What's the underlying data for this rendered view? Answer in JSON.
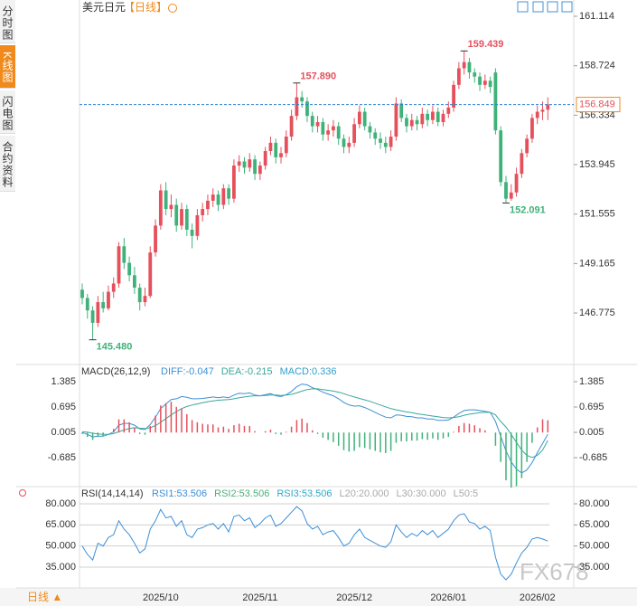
{
  "header": {
    "title": "美元日元",
    "subtitle": "【日线】",
    "sidebar_tabs": [
      "分时图",
      "K线图",
      "闪电图",
      "合约资料"
    ],
    "timeframe_button": "日线 ▲",
    "watermark": "FX678"
  },
  "chart_data": [
    {
      "type": "candlestick",
      "up_color": "#e5505c",
      "down_color": "#3fb27a",
      "ylim": [
        144.417,
        161.114
      ],
      "yticks": [
        161.114,
        158.724,
        156.334,
        153.945,
        151.555,
        149.165,
        146.775
      ],
      "last_price": {
        "value": 156.849,
        "label": "156.849",
        "color": "#2c7fd0"
      },
      "annotations": [
        {
          "value": 157.89,
          "label": "157.890",
          "color": "#e5505c"
        },
        {
          "value": 159.439,
          "label": "159.439",
          "color": "#e5505c"
        },
        {
          "value": 152.091,
          "label": "152.091",
          "color": "#3fb27a"
        },
        {
          "value": 145.48,
          "label": "145.480",
          "color": "#3fb27a"
        }
      ],
      "categories": [
        null,
        null,
        null,
        null,
        null,
        null,
        null,
        null,
        null,
        null,
        null,
        null,
        null,
        null,
        null,
        "2025/10",
        null,
        null,
        null,
        null,
        null,
        null,
        null,
        null,
        null,
        null,
        null,
        null,
        null,
        null,
        null,
        null,
        null,
        null,
        "2025/11",
        null,
        null,
        null,
        null,
        null,
        null,
        null,
        null,
        null,
        null,
        null,
        null,
        null,
        null,
        null,
        null,
        null,
        "2025/12",
        null,
        null,
        null,
        null,
        null,
        null,
        null,
        null,
        null,
        null,
        null,
        null,
        null,
        null,
        null,
        null,
        null,
        "2026/01",
        null,
        null,
        null,
        null,
        null,
        null,
        null,
        null,
        null,
        null,
        null,
        null,
        null,
        null,
        null,
        null,
        "2026/02"
      ],
      "ohlc": [
        [
          147.9,
          148.2,
          147.2,
          147.5
        ],
        [
          147.5,
          147.7,
          146.5,
          146.9
        ],
        [
          146.9,
          147.1,
          145.48,
          146.3
        ],
        [
          146.3,
          147.6,
          146.1,
          147.3
        ],
        [
          147.3,
          147.8,
          146.8,
          147.0
        ],
        [
          147.0,
          148.1,
          146.9,
          147.8
        ],
        [
          147.8,
          148.5,
          147.5,
          148.2
        ],
        [
          148.2,
          150.2,
          148.0,
          150.0
        ],
        [
          150.0,
          150.4,
          148.9,
          149.2
        ],
        [
          149.2,
          149.5,
          148.3,
          148.6
        ],
        [
          148.6,
          149.0,
          147.7,
          148.0
        ],
        [
          148.0,
          148.2,
          146.9,
          147.3
        ],
        [
          147.3,
          148.0,
          147.1,
          147.6
        ],
        [
          147.6,
          150.0,
          147.5,
          149.7
        ],
        [
          149.7,
          151.3,
          149.5,
          151.0
        ],
        [
          151.0,
          153.0,
          150.8,
          152.7
        ],
        [
          152.7,
          153.1,
          151.5,
          151.8
        ],
        [
          151.8,
          152.5,
          151.4,
          152.0
        ],
        [
          152.0,
          152.3,
          150.7,
          151.0
        ],
        [
          151.0,
          152.1,
          150.8,
          151.8
        ],
        [
          151.8,
          152.0,
          150.5,
          150.8
        ],
        [
          150.8,
          151.1,
          149.9,
          150.5
        ],
        [
          150.5,
          151.8,
          150.3,
          151.5
        ],
        [
          151.5,
          152.1,
          151.2,
          151.8
        ],
        [
          151.8,
          152.5,
          151.5,
          152.2
        ],
        [
          152.2,
          152.8,
          151.9,
          152.5
        ],
        [
          152.5,
          152.7,
          151.7,
          152.0
        ],
        [
          152.0,
          153.0,
          151.8,
          152.8
        ],
        [
          152.8,
          153.0,
          152.0,
          152.3
        ],
        [
          152.3,
          154.2,
          152.1,
          153.9
        ],
        [
          153.9,
          154.4,
          153.6,
          154.1
        ],
        [
          154.1,
          154.3,
          153.5,
          153.8
        ],
        [
          153.8,
          154.5,
          153.6,
          154.2
        ],
        [
          154.2,
          154.4,
          153.2,
          153.5
        ],
        [
          153.5,
          154.1,
          153.2,
          153.9
        ],
        [
          153.9,
          154.8,
          153.7,
          154.6
        ],
        [
          154.6,
          155.3,
          154.4,
          155.0
        ],
        [
          155.0,
          155.2,
          154.0,
          154.3
        ],
        [
          154.3,
          154.8,
          154.0,
          154.5
        ],
        [
          154.5,
          155.6,
          154.3,
          155.3
        ],
        [
          155.3,
          156.6,
          155.1,
          156.3
        ],
        [
          156.3,
          157.89,
          156.1,
          157.2
        ],
        [
          157.2,
          157.5,
          156.7,
          157.0
        ],
        [
          157.0,
          157.2,
          156.0,
          156.3
        ],
        [
          156.3,
          156.5,
          155.5,
          155.8
        ],
        [
          155.8,
          156.3,
          155.5,
          156.0
        ],
        [
          156.0,
          156.2,
          155.1,
          155.4
        ],
        [
          155.4,
          155.9,
          155.1,
          155.6
        ],
        [
          155.6,
          156.1,
          155.3,
          155.8
        ],
        [
          155.8,
          156.0,
          154.9,
          155.2
        ],
        [
          155.2,
          155.4,
          154.5,
          154.8
        ],
        [
          154.8,
          155.3,
          154.5,
          155.0
        ],
        [
          155.0,
          156.2,
          154.8,
          155.9
        ],
        [
          155.9,
          156.8,
          155.7,
          156.5
        ],
        [
          156.5,
          156.7,
          155.6,
          155.8
        ],
        [
          155.8,
          156.0,
          155.2,
          155.5
        ],
        [
          155.5,
          155.7,
          154.9,
          155.2
        ],
        [
          155.2,
          155.5,
          154.7,
          155.0
        ],
        [
          155.0,
          155.3,
          154.5,
          154.8
        ],
        [
          154.8,
          155.6,
          154.6,
          155.3
        ],
        [
          155.3,
          157.2,
          155.1,
          156.9
        ],
        [
          156.9,
          157.1,
          156.0,
          156.2
        ],
        [
          156.2,
          156.4,
          155.5,
          155.8
        ],
        [
          155.8,
          156.4,
          155.6,
          156.1
        ],
        [
          156.1,
          156.3,
          155.6,
          155.9
        ],
        [
          155.9,
          156.7,
          155.7,
          156.4
        ],
        [
          156.4,
          156.6,
          155.8,
          156.1
        ],
        [
          156.1,
          156.8,
          155.9,
          156.5
        ],
        [
          156.5,
          156.7,
          155.8,
          156.0
        ],
        [
          156.0,
          156.6,
          155.8,
          156.4
        ],
        [
          156.4,
          157.0,
          156.2,
          156.7
        ],
        [
          156.7,
          158.0,
          156.5,
          157.8
        ],
        [
          157.8,
          158.9,
          157.6,
          158.6
        ],
        [
          158.6,
          159.439,
          158.3,
          158.9
        ],
        [
          158.9,
          159.1,
          158.1,
          158.4
        ],
        [
          158.4,
          158.6,
          157.9,
          158.2
        ],
        [
          158.2,
          158.4,
          157.5,
          157.8
        ],
        [
          157.8,
          158.3,
          157.6,
          158.0
        ],
        [
          158.0,
          158.2,
          157.4,
          157.7
        ],
        [
          158.4,
          158.6,
          155.4,
          155.6
        ],
        [
          155.6,
          155.8,
          152.9,
          153.1
        ],
        [
          153.1,
          153.4,
          152.091,
          152.3
        ],
        [
          152.3,
          153.0,
          152.2,
          152.6
        ],
        [
          152.6,
          153.8,
          152.4,
          153.5
        ],
        [
          153.5,
          154.7,
          153.3,
          154.5
        ],
        [
          154.5,
          155.4,
          154.3,
          155.2
        ],
        [
          155.2,
          156.4,
          155.0,
          156.2
        ],
        [
          156.2,
          156.8,
          155.9,
          156.5
        ],
        [
          156.5,
          157.0,
          156.1,
          156.6
        ],
        [
          156.6,
          157.2,
          156.1,
          156.849
        ]
      ]
    },
    {
      "type": "macd",
      "title": "MACD(26,12,9)",
      "ylim": [
        -1.522,
        1.804
      ],
      "yticks": [
        1.385,
        0.695,
        0.005,
        -0.685
      ],
      "series": [
        {
          "name": "DIFF:-0.047",
          "color": "#3d8fd6",
          "mark": "line",
          "values": [
            0.0,
            -0.05,
            -0.12,
            -0.1,
            -0.1,
            -0.05,
            0.02,
            0.2,
            0.25,
            0.25,
            0.2,
            0.1,
            0.08,
            0.22,
            0.42,
            0.65,
            0.78,
            0.9,
            0.92,
            0.98,
            0.96,
            0.92,
            0.92,
            0.93,
            0.95,
            0.97,
            0.95,
            0.97,
            0.95,
            1.02,
            1.07,
            1.06,
            1.08,
            1.02,
            1.0,
            1.03,
            1.06,
            1.0,
            0.98,
            1.03,
            1.12,
            1.25,
            1.32,
            1.3,
            1.22,
            1.17,
            1.1,
            1.05,
            1.0,
            0.92,
            0.82,
            0.75,
            0.72,
            0.73,
            0.68,
            0.62,
            0.55,
            0.48,
            0.42,
            0.4,
            0.48,
            0.47,
            0.44,
            0.43,
            0.4,
            0.4,
            0.37,
            0.37,
            0.33,
            0.33,
            0.34,
            0.42,
            0.52,
            0.6,
            0.62,
            0.62,
            0.6,
            0.58,
            0.55,
            0.3,
            -0.1,
            -0.5,
            -0.8,
            -1.0,
            -1.1,
            -1.02,
            -0.82,
            -0.55,
            -0.3,
            -0.047
          ]
        },
        {
          "name": "DEA:-0.215",
          "color": "#3aa89a",
          "mark": "line",
          "values": [
            0.02,
            0.01,
            -0.02,
            -0.04,
            -0.05,
            -0.05,
            -0.03,
            0.02,
            0.07,
            0.11,
            0.13,
            0.12,
            0.11,
            0.13,
            0.19,
            0.28,
            0.38,
            0.48,
            0.57,
            0.65,
            0.71,
            0.75,
            0.78,
            0.81,
            0.84,
            0.86,
            0.88,
            0.89,
            0.9,
            0.92,
            0.95,
            0.97,
            0.99,
            1.0,
            1.0,
            1.01,
            1.02,
            1.02,
            1.01,
            1.02,
            1.04,
            1.08,
            1.13,
            1.17,
            1.19,
            1.19,
            1.17,
            1.15,
            1.13,
            1.1,
            1.06,
            1.01,
            0.97,
            0.93,
            0.89,
            0.85,
            0.8,
            0.75,
            0.7,
            0.65,
            0.62,
            0.59,
            0.56,
            0.54,
            0.51,
            0.49,
            0.47,
            0.45,
            0.43,
            0.41,
            0.4,
            0.41,
            0.43,
            0.47,
            0.5,
            0.52,
            0.54,
            0.55,
            0.55,
            0.48,
            0.3,
            0.15,
            -0.05,
            -0.27,
            -0.48,
            -0.62,
            -0.68,
            -0.62,
            -0.48,
            -0.215
          ]
        },
        {
          "name": "MACD:0.336",
          "color": "#2f9fd0",
          "mark": "bar",
          "up_color": "#e5505c",
          "down_color": "#3fb27a",
          "values": [
            -0.04,
            -0.12,
            -0.2,
            -0.12,
            -0.1,
            0.0,
            0.1,
            0.36,
            0.36,
            0.28,
            0.14,
            -0.04,
            -0.06,
            0.18,
            0.46,
            0.74,
            0.8,
            0.84,
            0.7,
            0.66,
            0.5,
            0.34,
            0.28,
            0.24,
            0.22,
            0.22,
            0.14,
            0.16,
            0.1,
            0.2,
            0.24,
            0.18,
            0.18,
            0.04,
            0.0,
            0.04,
            0.08,
            -0.04,
            -0.06,
            0.02,
            0.16,
            0.34,
            0.38,
            0.26,
            0.06,
            -0.04,
            -0.14,
            -0.2,
            -0.26,
            -0.36,
            -0.48,
            -0.52,
            -0.5,
            -0.4,
            -0.42,
            -0.46,
            -0.5,
            -0.54,
            -0.56,
            -0.5,
            -0.28,
            -0.24,
            -0.24,
            -0.22,
            -0.22,
            -0.18,
            -0.2,
            -0.16,
            -0.2,
            -0.16,
            -0.12,
            0.02,
            0.18,
            0.26,
            0.24,
            0.2,
            0.12,
            0.06,
            0.0,
            -0.36,
            -0.8,
            -1.3,
            -1.5,
            -1.46,
            -1.24,
            -0.8,
            -0.28,
            0.14,
            0.36,
            0.336
          ]
        }
      ]
    },
    {
      "type": "rsi",
      "title": "RSI(14,14,14)",
      "ylim": [
        20.22,
        85.14
      ],
      "yticks": [
        {
          "value": 80,
          "label": "80.000"
        },
        {
          "value": 65,
          "label": "65.000"
        },
        {
          "value": 50,
          "label": "50.000"
        },
        {
          "value": 35,
          "label": "35.000"
        }
      ],
      "series": [
        {
          "name": "RSI1:53.506",
          "color": "#3d8fd6",
          "values": [
            50,
            44,
            40,
            52,
            50,
            56,
            58,
            68,
            62,
            58,
            52,
            45,
            48,
            62,
            68,
            76,
            70,
            71,
            64,
            68,
            58,
            56,
            62,
            63,
            65,
            66,
            62,
            66,
            60,
            71,
            72,
            68,
            70,
            63,
            66,
            70,
            72,
            64,
            66,
            70,
            74,
            78,
            75,
            66,
            62,
            64,
            58,
            60,
            61,
            56,
            50,
            52,
            58,
            62,
            56,
            54,
            52,
            50,
            49,
            53,
            65,
            60,
            56,
            59,
            57,
            61,
            58,
            61,
            56,
            59,
            62,
            68,
            72,
            73,
            67,
            66,
            62,
            64,
            61,
            42,
            30,
            26,
            30,
            38,
            45,
            49,
            55,
            56,
            55,
            53.506
          ]
        }
      ],
      "legend_extra": [
        {
          "label": "RSI2:53.506",
          "color": "#4cb07a"
        },
        {
          "label": "RSI3:53.506",
          "color": "#2fa8c8"
        },
        {
          "label": "L20:20.000",
          "color": "#aaaaaa"
        },
        {
          "label": "L30:30.000",
          "color": "#aaaaaa"
        },
        {
          "label": "L50:5",
          "color": "#aaaaaa"
        }
      ]
    }
  ]
}
